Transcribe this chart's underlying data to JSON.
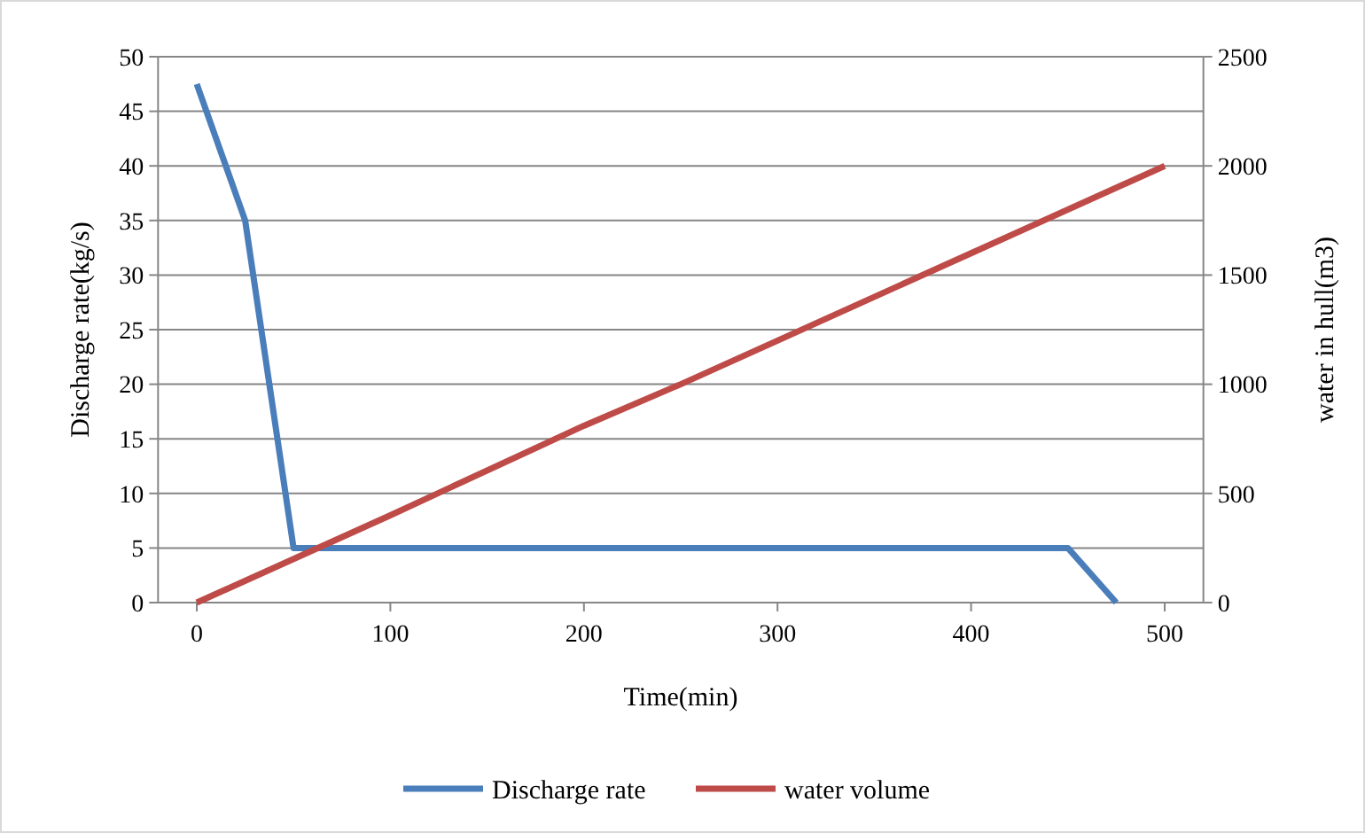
{
  "chart_data": {
    "type": "line",
    "xlabel": "Time(min)",
    "ylabel": "Discharge  rate(kg/s)",
    "y2label": "water in hull(m3)",
    "xlim": [
      -20,
      520
    ],
    "xticks": [
      0,
      100,
      200,
      300,
      400,
      500
    ],
    "ylim": [
      0,
      50
    ],
    "yticks": [
      0,
      5,
      10,
      15,
      20,
      25,
      30,
      35,
      40,
      45,
      50
    ],
    "y2lim": [
      0,
      2500
    ],
    "y2ticks": [
      0,
      500,
      1000,
      1500,
      2000,
      2500
    ],
    "grid": "y",
    "legend": "bottom",
    "line_style": "solid",
    "marker": "none",
    "series": [
      {
        "name": "Discharge rate",
        "color": "#4a7ebb",
        "x": [
          0,
          25,
          50,
          450,
          475
        ],
        "values": [
          47.5,
          35,
          5,
          5,
          0
        ]
      },
      {
        "name": "water volume",
        "color": "#be4b48",
        "axis": "y2",
        "x": [
          0,
          100,
          200,
          250,
          300,
          400,
          500
        ],
        "values": [
          0,
          400,
          810,
          1000,
          1200,
          1600,
          2000
        ]
      }
    ]
  }
}
